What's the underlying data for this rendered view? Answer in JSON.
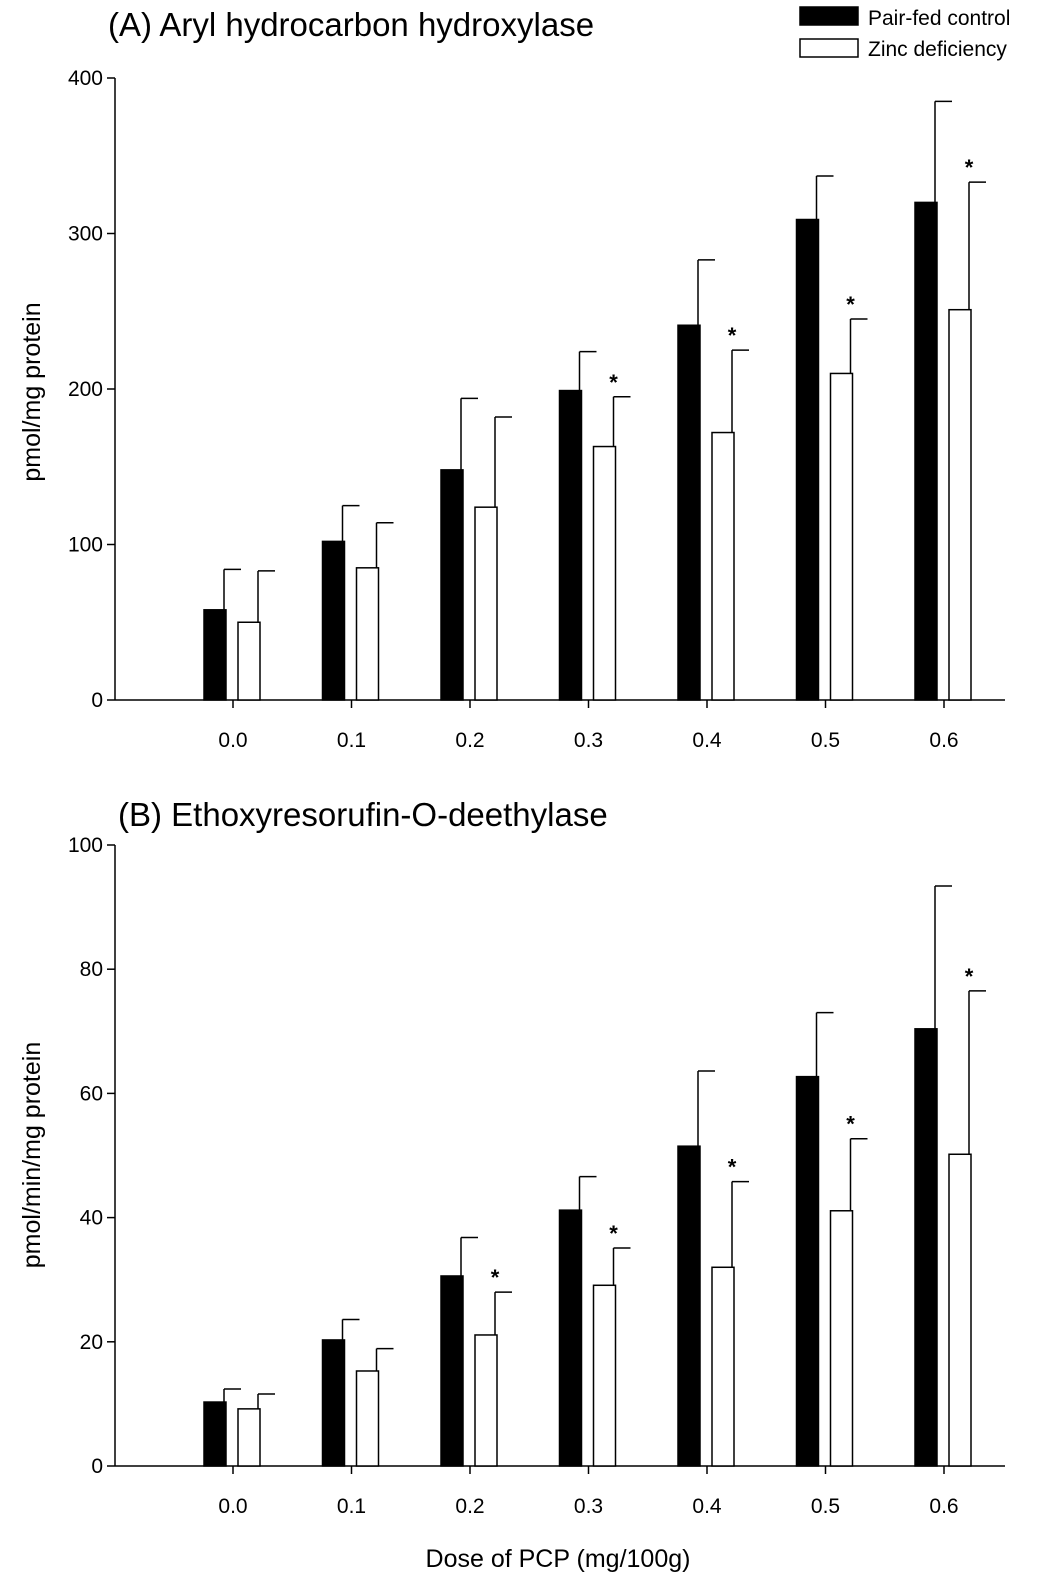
{
  "legend": {
    "items": [
      {
        "label": "Pair-fed control",
        "fill": "#000000"
      },
      {
        "label": "Zinc deficiency",
        "fill": "#ffffff"
      }
    ]
  },
  "xlabel": "Dose of PCP (mg/100g)",
  "chart_data": [
    {
      "type": "bar",
      "title": "(A) Aryl hydrocarbon hydroxylase",
      "ylabel": "pmol/mg protein",
      "ylim": [
        0,
        400
      ],
      "yticks": [
        "0",
        "100",
        "200",
        "300",
        "400"
      ],
      "categories": [
        "0.0",
        "0.1",
        "0.2",
        "0.3",
        "0.4",
        "0.5",
        "0.6"
      ],
      "series": [
        {
          "name": "Pair-fed control",
          "values": [
            58,
            102,
            148,
            199,
            241,
            309,
            320
          ],
          "errors": [
            26,
            23,
            46,
            25,
            42,
            28,
            65
          ]
        },
        {
          "name": "Zinc deficiency",
          "values": [
            50,
            85,
            124,
            163,
            172,
            210,
            251
          ],
          "errors": [
            33,
            29,
            58,
            32,
            53,
            35,
            82
          ]
        }
      ],
      "significance": [
        false,
        false,
        false,
        true,
        true,
        true,
        true
      ]
    },
    {
      "type": "bar",
      "title": "(B) Ethoxyresorufin-O-deethylase",
      "ylabel": "pmol/min/mg protein",
      "ylim": [
        0,
        100
      ],
      "yticks": [
        "0",
        "20",
        "40",
        "60",
        "80",
        "100"
      ],
      "categories": [
        "0.0",
        "0.1",
        "0.2",
        "0.3",
        "0.4",
        "0.5",
        "0.6"
      ],
      "series": [
        {
          "name": "Pair-fed control",
          "values": [
            10.3,
            20.3,
            30.6,
            41.2,
            51.5,
            62.7,
            70.4
          ],
          "errors": [
            2.1,
            3.3,
            6.2,
            5.4,
            12.1,
            10.3,
            23.0
          ]
        },
        {
          "name": "Zinc deficiency",
          "values": [
            9.2,
            15.3,
            21.1,
            29.1,
            32.0,
            41.1,
            50.2
          ],
          "errors": [
            2.4,
            3.6,
            6.9,
            6.0,
            13.8,
            11.6,
            26.3
          ]
        }
      ],
      "significance": [
        false,
        false,
        true,
        true,
        true,
        true,
        true
      ],
      "significance_marker": "*"
    }
  ]
}
